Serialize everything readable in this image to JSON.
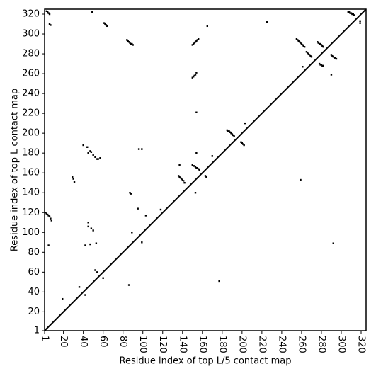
{
  "chart_data": {
    "type": "scatter",
    "x_label": "Residue index of top L/5 contact map",
    "y_label": "Residue index of top L contact map",
    "color": "#000000",
    "xlim": [
      1,
      325
    ],
    "ylim": [
      1,
      325
    ],
    "xticks": [
      1,
      20,
      40,
      60,
      80,
      100,
      120,
      140,
      160,
      180,
      200,
      220,
      240,
      260,
      280,
      300,
      320
    ],
    "yticks": [
      1,
      20,
      40,
      60,
      80,
      100,
      120,
      140,
      160,
      180,
      200,
      220,
      240,
      260,
      280,
      300,
      320
    ],
    "x": [
      3,
      4,
      5,
      6,
      6,
      7,
      49,
      61,
      62,
      63,
      64,
      84,
      85,
      86,
      87,
      88,
      89,
      90,
      165,
      150,
      151,
      152,
      153,
      154,
      155,
      156,
      150,
      151,
      152,
      153,
      154,
      154,
      225,
      255,
      256,
      257,
      258,
      259,
      260,
      261,
      262,
      263,
      265,
      266,
      267,
      268,
      269,
      270,
      276,
      277,
      278,
      279,
      280,
      281,
      282,
      278,
      279,
      280,
      281,
      282,
      290,
      291,
      292,
      293,
      294,
      295,
      307,
      308,
      309,
      310,
      311,
      312,
      313,
      319,
      319,
      185,
      186,
      187,
      188,
      189,
      190,
      191,
      192,
      199,
      200,
      201,
      202,
      203,
      136,
      137,
      138,
      139,
      140,
      141,
      142,
      137,
      150,
      151,
      152,
      153,
      154,
      155,
      156,
      157,
      163,
      164,
      153,
      154,
      170,
      96,
      99,
      29,
      30,
      31,
      40,
      44,
      45,
      47,
      48,
      50,
      52,
      54,
      55,
      57,
      87,
      88,
      2,
      3,
      4,
      5,
      6,
      7,
      8,
      42,
      45,
      45,
      47,
      48,
      50,
      53,
      5,
      89,
      95,
      99,
      103,
      118,
      52,
      54,
      60,
      36,
      42,
      19,
      86,
      177,
      259,
      261,
      290,
      292
    ],
    "values": [
      323,
      322,
      321,
      320,
      310,
      309,
      322,
      311,
      310,
      309,
      308,
      294,
      293,
      292,
      291,
      290,
      290,
      289,
      308,
      289,
      290,
      291,
      292,
      293,
      294,
      295,
      256,
      257,
      258,
      259,
      261,
      221,
      312,
      295,
      294,
      293,
      292,
      291,
      290,
      289,
      288,
      287,
      282,
      281,
      280,
      279,
      278,
      277,
      292,
      291,
      290,
      290,
      289,
      288,
      287,
      270,
      269,
      269,
      268,
      268,
      279,
      278,
      277,
      276,
      276,
      275,
      322,
      322,
      321,
      321,
      320,
      320,
      319,
      313,
      311,
      203,
      202,
      202,
      201,
      200,
      199,
      198,
      197,
      191,
      190,
      189,
      188,
      210,
      157,
      156,
      155,
      154,
      153,
      152,
      150,
      168,
      168,
      167,
      167,
      166,
      165,
      165,
      164,
      163,
      157,
      156,
      140,
      180,
      177,
      184,
      184,
      156,
      154,
      151,
      188,
      186,
      180,
      182,
      181,
      178,
      176,
      174,
      174,
      175,
      140,
      139,
      120,
      119,
      118,
      117,
      116,
      114,
      112,
      87,
      106,
      110,
      88,
      104,
      102,
      89,
      87,
      100,
      124,
      90,
      117,
      123,
      62,
      60,
      54,
      45,
      37,
      33,
      47,
      51,
      153,
      267,
      259,
      89
    ]
  }
}
